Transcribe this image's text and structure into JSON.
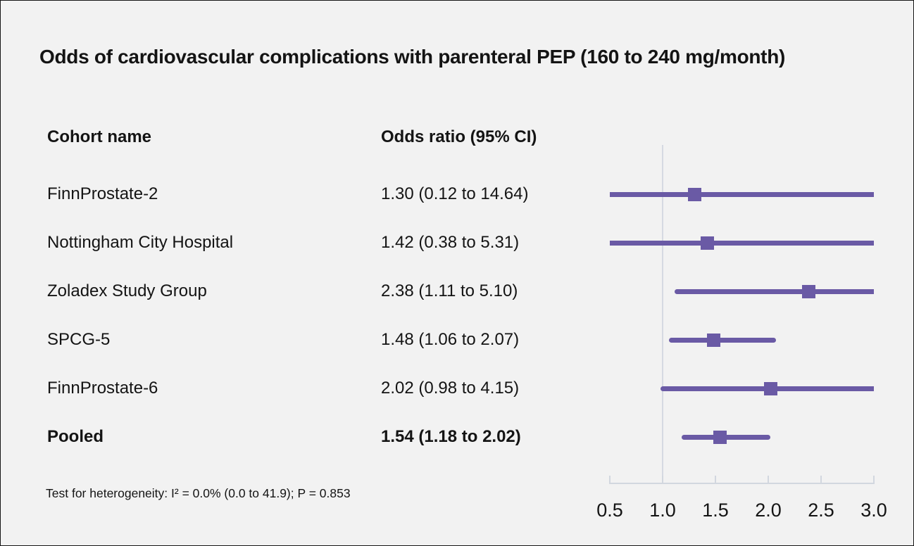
{
  "title": "Odds of cardiovascular complications with parenteral PEP (160 to 240 mg/month)",
  "table": {
    "cohort_header": "Cohort name",
    "or_header": "Odds ratio (95% CI)"
  },
  "footnote": "Test for heterogeneity: I² = 0.0% (0.0 to 41.9); P = 0.853",
  "colors": {
    "background": "#f2f2f2",
    "bar": "#6a5aa5",
    "reference_line": "#d5d9e2",
    "axis": "#d2d7df",
    "text": "#141414"
  },
  "chart_data": {
    "type": "forest",
    "title": "Odds of cardiovascular complications with parenteral PEP (160 to 240 mg/month)",
    "xlabel": "",
    "xlim": [
      0.5,
      3.0
    ],
    "reference_value": 1.0,
    "x_ticks": [
      0.5,
      1.0,
      1.5,
      2.0,
      2.5,
      3.0
    ],
    "x_tick_labels": [
      "0.5",
      "1.0",
      "1.5",
      "2.0",
      "2.5",
      "3.0"
    ],
    "grid": false,
    "legend": "none",
    "rows": [
      {
        "label": "FinnProstate-2",
        "display": "1.30 (0.12 to 14.64)",
        "or": 1.3,
        "ci_low": 0.12,
        "ci_high": 14.64,
        "bold": false
      },
      {
        "label": "Nottingham City Hospital",
        "display": "1.42 (0.38 to 5.31)",
        "or": 1.42,
        "ci_low": 0.38,
        "ci_high": 5.31,
        "bold": false
      },
      {
        "label": "Zoladex Study Group",
        "display": "2.38 (1.11 to 5.10)",
        "or": 2.38,
        "ci_low": 1.11,
        "ci_high": 5.1,
        "bold": false
      },
      {
        "label": "SPCG-5",
        "display": "1.48 (1.06 to 2.07)",
        "or": 1.48,
        "ci_low": 1.06,
        "ci_high": 2.07,
        "bold": false
      },
      {
        "label": "FinnProstate-6",
        "display": "2.02 (0.98 to 4.15)",
        "or": 2.02,
        "ci_low": 0.98,
        "ci_high": 4.15,
        "bold": false
      },
      {
        "label": "Pooled",
        "display": "1.54 (1.18 to 2.02)",
        "or": 1.54,
        "ci_low": 1.18,
        "ci_high": 2.02,
        "bold": true
      }
    ]
  }
}
